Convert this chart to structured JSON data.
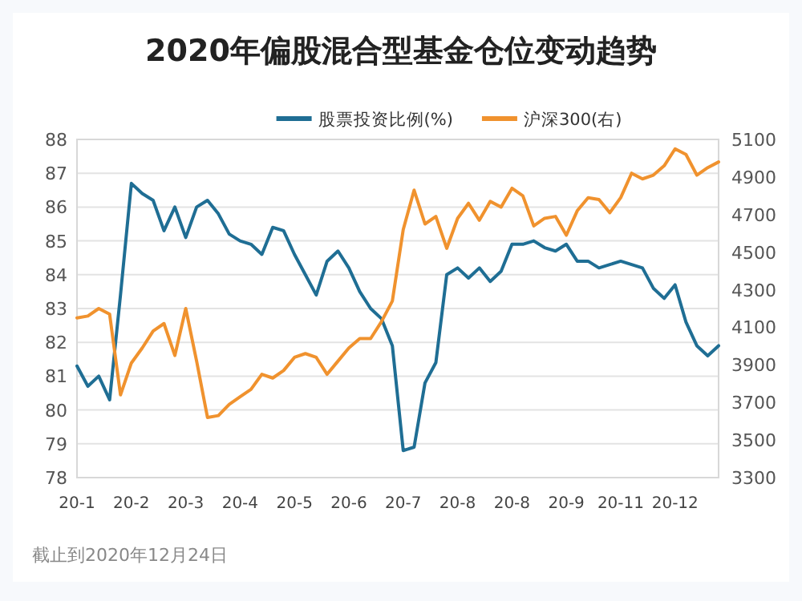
{
  "chart_data": {
    "type": "line",
    "title": "2020年偏股混合型基金仓位变动趋势",
    "annotations": [
      "截止到2020年12月24日"
    ],
    "grid": "y",
    "legend": "top",
    "categories": [
      "20-1",
      null,
      null,
      null,
      null,
      "20-2",
      null,
      null,
      null,
      null,
      "20-3",
      null,
      null,
      null,
      null,
      "20-4",
      null,
      null,
      null,
      null,
      "20-5",
      null,
      null,
      null,
      null,
      "20-6",
      null,
      null,
      null,
      null,
      "20-7",
      null,
      null,
      null,
      null,
      "20-8",
      null,
      null,
      null,
      null,
      "20-8",
      null,
      null,
      null,
      null,
      "20-9",
      null,
      null,
      null,
      null,
      "20-11",
      null,
      null,
      null,
      null,
      "20-12",
      null,
      null,
      null,
      null
    ],
    "ylim": [
      78,
      88
    ],
    "yticks": [
      78,
      79,
      80,
      81,
      82,
      83,
      84,
      85,
      86,
      87,
      88
    ],
    "y2lim": [
      3300,
      5100
    ],
    "y2ticks": [
      3300,
      3500,
      3700,
      3900,
      4100,
      4300,
      4500,
      4700,
      4900,
      5100
    ],
    "series": [
      {
        "name": "股票投资比例(%)",
        "color": "#1f6e94",
        "values": [
          81.3,
          80.7,
          81.0,
          80.3,
          83.4,
          86.7,
          86.4,
          86.2,
          85.3,
          86.0,
          85.1,
          86.0,
          86.2,
          85.8,
          85.2,
          85.0,
          84.9,
          84.6,
          85.4,
          85.3,
          84.6,
          84.0,
          83.4,
          84.4,
          84.7,
          84.2,
          83.5,
          83.0,
          82.7,
          81.9,
          78.8,
          78.9,
          80.8,
          81.4,
          84.0,
          84.2,
          83.9,
          84.2,
          83.8,
          84.1,
          84.9,
          84.9,
          85.0,
          84.8,
          84.7,
          84.9,
          84.4,
          84.4,
          84.2,
          84.3,
          84.4,
          84.3,
          84.2,
          83.6,
          83.3,
          83.7,
          82.6,
          81.9,
          81.6,
          81.9
        ]
      },
      {
        "name": "沪深300(右)",
        "color": "#f0922e",
        "axis": "y2",
        "values": [
          4150,
          4160,
          4200,
          4170,
          3740,
          3910,
          3990,
          4080,
          4120,
          3950,
          4200,
          3920,
          3620,
          3630,
          3690,
          3730,
          3770,
          3850,
          3830,
          3870,
          3940,
          3960,
          3940,
          3850,
          3920,
          3990,
          4040,
          4040,
          4130,
          4240,
          4620,
          4830,
          4650,
          4690,
          4520,
          4680,
          4760,
          4670,
          4770,
          4740,
          4840,
          4800,
          4640,
          4680,
          4690,
          4590,
          4720,
          4790,
          4780,
          4710,
          4790,
          4920,
          4890,
          4910,
          4960,
          5050,
          5020,
          4910,
          4950,
          4980
        ]
      }
    ]
  }
}
